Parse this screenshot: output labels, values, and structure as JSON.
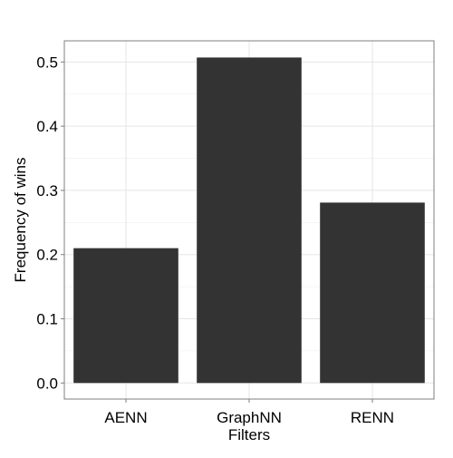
{
  "chart_data": {
    "type": "bar",
    "categories": [
      "AENN",
      "GraphNN",
      "RENN"
    ],
    "values": [
      0.21,
      0.507,
      0.281
    ],
    "title": "",
    "xlabel": "Filters",
    "ylabel": "Frequency of wins",
    "ylim": [
      -0.025,
      0.533
    ],
    "yticks": [
      0.0,
      0.1,
      0.2,
      0.3,
      0.4,
      0.5
    ],
    "ytick_labels": [
      "0.0",
      "0.1",
      "0.2",
      "0.3",
      "0.4",
      "0.5"
    ],
    "grid": true,
    "legend": "none",
    "colors": {
      "bar": "#333333",
      "panel_border": "#7f7f7f",
      "grid_major": "#e5e5e5",
      "grid_minor": "#f2f2f2",
      "tick": "#7f7f7f"
    }
  }
}
